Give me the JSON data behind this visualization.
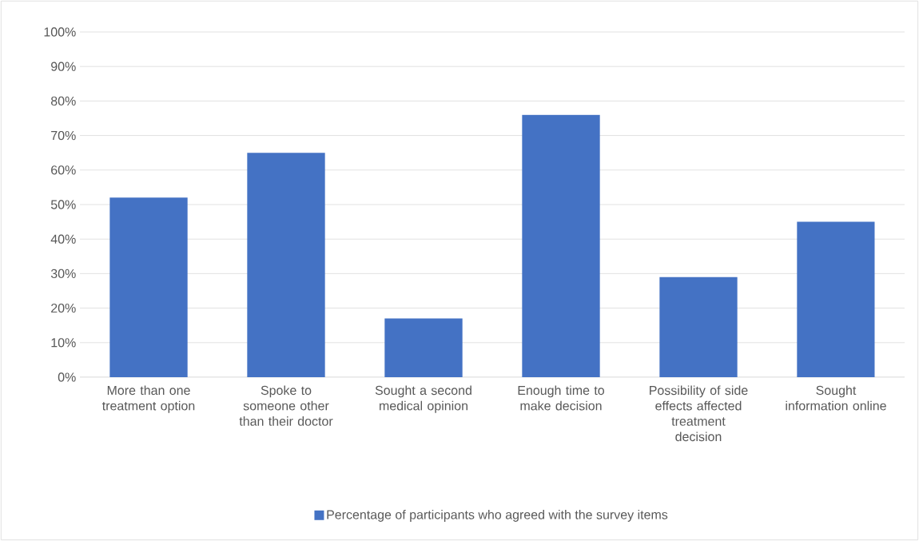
{
  "chart_data": {
    "type": "bar",
    "categories": [
      "More than one treatment option",
      "Spoke to someone other than their doctor",
      "Sought a second medical opinion",
      "Enough time to make decision",
      "Possibility of side effects affected treatment decision",
      "Sought information online"
    ],
    "series": [
      {
        "name": "Percentage of participants who agreed with the survey items",
        "color": "#4472c4",
        "values": [
          52,
          65,
          17,
          76,
          29,
          45
        ]
      }
    ],
    "ylim": [
      0,
      100
    ],
    "yticks": [
      {
        "value": 0,
        "label": "0%"
      },
      {
        "value": 10,
        "label": "10%"
      },
      {
        "value": 20,
        "label": "20%"
      },
      {
        "value": 30,
        "label": "30%"
      },
      {
        "value": 40,
        "label": "40%"
      },
      {
        "value": 50,
        "label": "50%"
      },
      {
        "value": 60,
        "label": "60%"
      },
      {
        "value": 70,
        "label": "70%"
      },
      {
        "value": 80,
        "label": "80%"
      },
      {
        "value": 90,
        "label": "90%"
      },
      {
        "value": 100,
        "label": "100%"
      }
    ],
    "grid": "y",
    "legend": "bottom"
  }
}
